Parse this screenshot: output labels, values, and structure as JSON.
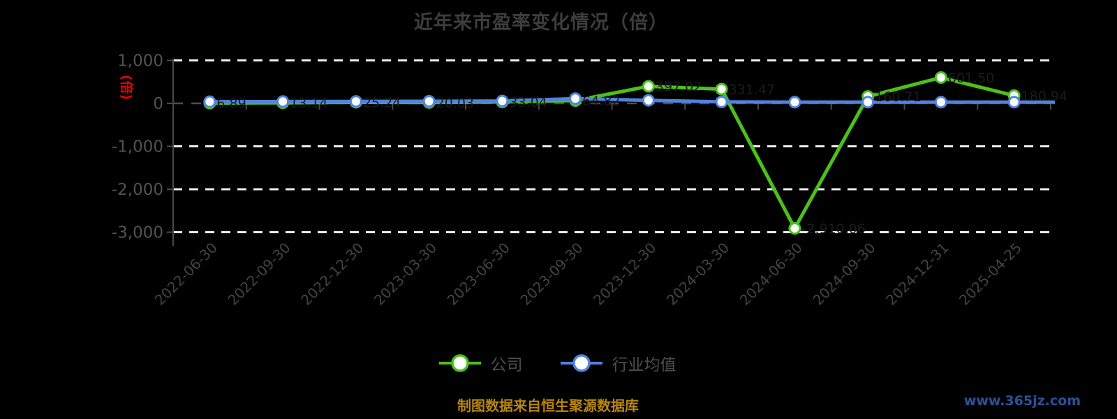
{
  "title": {
    "text": "近年来市盈率变化情况（倍）",
    "color": "#3d3d3d"
  },
  "chart_data": {
    "type": "line",
    "title": "近年来市盈率变化情况（倍）",
    "y_unit_label": "(倍)",
    "y_unit_color": "#e60000",
    "ylim": [
      -3000,
      1000
    ],
    "y_ticks": [
      1000,
      0,
      -1000,
      -2000,
      -3000
    ],
    "y_tick_labels": [
      "1,000",
      "0",
      "-1,000",
      "-2,000",
      "-3,000"
    ],
    "grid": "horizontal white dashed lines",
    "legend_position": "bottom-center",
    "categories": [
      "2022-06-30",
      "2022-09-30",
      "2022-12-30",
      "2023-03-30",
      "2023-06-30",
      "2023-09-30",
      "2023-12-30",
      "2024-03-30",
      "2024-06-30",
      "2024-09-30",
      "2024-12-31",
      "2025-04-25"
    ],
    "series": [
      {
        "name": "公司",
        "color": "#4bc119",
        "marker": "white circle with green ring",
        "values": [
          6.89,
          13.14,
          25.24,
          20.03,
          33.04,
          64.82,
          397.02,
          331.47,
          -2910.06,
          160.71,
          601.5,
          180.94
        ],
        "labels": [
          "6.89",
          "13.14",
          "25.24",
          "20.03",
          "33.04",
          "64.82",
          "397.02",
          "331.47",
          "-2,910.06",
          "160.71",
          "601.50",
          "180.94"
        ],
        "label_color": "#1c1c1c"
      },
      {
        "name": "行业均值",
        "color": "#5083e0",
        "marker": "white circle with blue ring",
        "values": [
          38,
          42,
          45,
          48,
          55,
          110,
          70,
          35,
          28,
          28,
          28,
          28
        ]
      }
    ]
  },
  "legend": {
    "items": [
      {
        "label": "公司",
        "color": "#4bc119"
      },
      {
        "label": "行业均值",
        "color": "#5083e0"
      }
    ]
  },
  "footer": {
    "source_note": "制图数据来自恒生聚源数据库",
    "color": "#b8860b"
  },
  "watermark": {
    "text": "www.365jz.com",
    "color": "#2e4f96"
  }
}
